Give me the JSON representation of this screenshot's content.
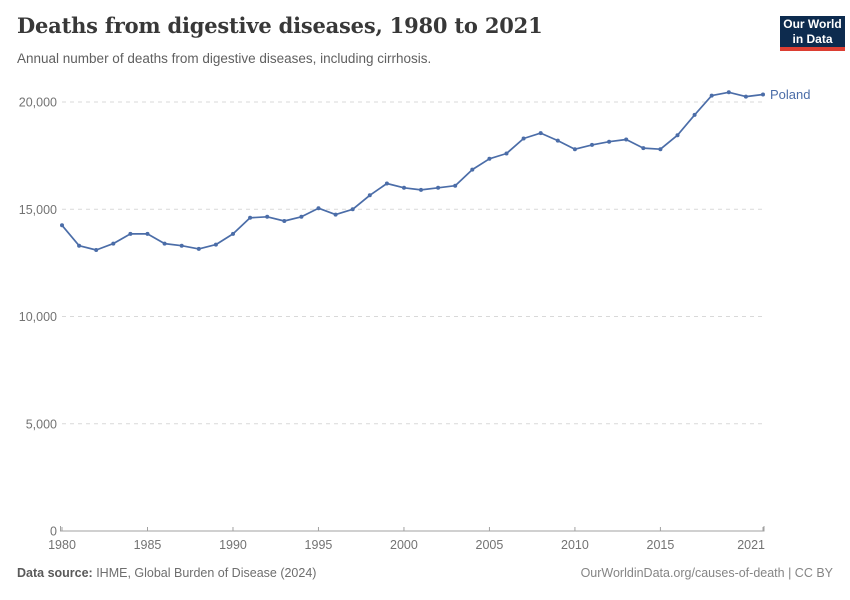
{
  "header": {
    "title": "Deaths from digestive diseases, 1980 to 2021",
    "subtitle": "Annual number of deaths from digestive diseases, including cirrhosis.",
    "logo": {
      "line1": "Our World",
      "line2": "in Data",
      "bg_color": "#0d2b4e",
      "accent_color": "#dc3e32"
    }
  },
  "chart_data": {
    "type": "line",
    "title": "Deaths from digestive diseases, 1980 to 2021",
    "x": [
      1980,
      1981,
      1982,
      1983,
      1984,
      1985,
      1986,
      1987,
      1988,
      1989,
      1990,
      1991,
      1992,
      1993,
      1994,
      1995,
      1996,
      1997,
      1998,
      1999,
      2000,
      2001,
      2002,
      2003,
      2004,
      2005,
      2006,
      2007,
      2008,
      2009,
      2010,
      2011,
      2012,
      2013,
      2014,
      2015,
      2016,
      2017,
      2018,
      2019,
      2020,
      2021
    ],
    "series": [
      {
        "name": "Poland",
        "color": "#4b6da8",
        "values": [
          14250,
          13300,
          13100,
          13400,
          13850,
          13850,
          13400,
          13300,
          13150,
          13350,
          13850,
          14600,
          14650,
          14450,
          14650,
          15050,
          14750,
          15000,
          15650,
          16200,
          16000,
          15900,
          16000,
          16100,
          16850,
          17350,
          17600,
          18300,
          18550,
          18200,
          17800,
          18000,
          18150,
          18250,
          17850,
          17800,
          18450,
          19400,
          20300,
          20450,
          20250,
          20350
        ]
      }
    ],
    "xlabel": "",
    "ylabel": "",
    "ylim": [
      0,
      20000
    ],
    "yticks": [
      0,
      5000,
      10000,
      15000,
      20000
    ],
    "ytick_labels": [
      "0",
      "5,000",
      "10,000",
      "15,000",
      "20,000"
    ],
    "xticks": [
      1980,
      1985,
      1990,
      1995,
      2000,
      2005,
      2010,
      2015,
      2021
    ],
    "grid": "horizontal-dashed",
    "grid_color": "#d9d9d9",
    "axis_color": "#a1a1a1",
    "tick_label_color": "#737373",
    "legend_position": "end-of-line-label"
  },
  "footer": {
    "source_label": "Data source:",
    "source_text": " IHME, Global Burden of Disease (2024)",
    "credit": "OurWorldinData.org/causes-of-death | CC BY"
  }
}
